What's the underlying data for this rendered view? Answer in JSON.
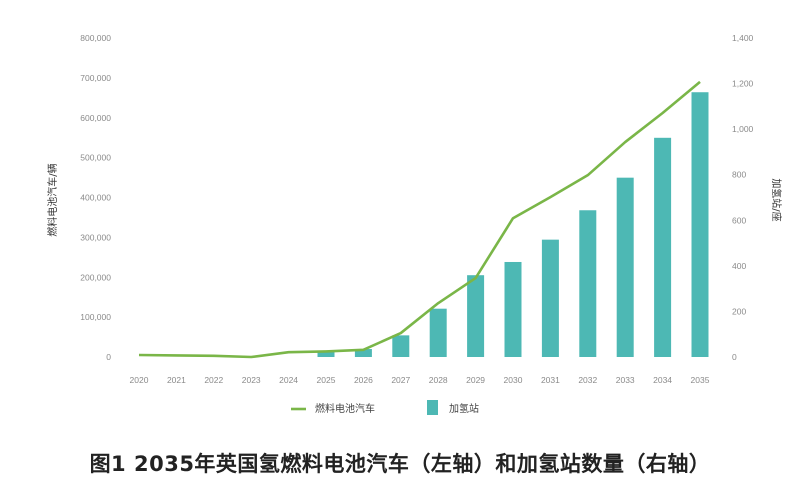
{
  "chart_data": {
    "type": "bar+line",
    "title": "图1 2035年英国氢燃料电池汽车（左轴）和加氢站数量（右轴）",
    "categories": [
      "2020",
      "2021",
      "2022",
      "2023",
      "2024",
      "2025",
      "2026",
      "2027",
      "2028",
      "2029",
      "2030",
      "2031",
      "2032",
      "2033",
      "2034",
      "2035"
    ],
    "series": [
      {
        "name": "燃料电池汽车",
        "type": "line",
        "axis": "left",
        "color": "#7AB648",
        "values": [
          5000,
          4000,
          3000,
          0,
          12000,
          14000,
          18000,
          60000,
          135000,
          198000,
          348000,
          401000,
          456000,
          539000,
          612000,
          690000
        ]
      },
      {
        "name": "加氢站",
        "type": "bar",
        "axis": "right",
        "color": "#4DB8B4",
        "values": [
          0,
          0,
          0,
          0,
          0,
          25,
          35,
          95,
          212,
          359,
          417,
          515,
          644,
          787,
          962,
          1162
        ]
      }
    ],
    "ylabel": "燃料电池汽车/辆",
    "y2label": "加氢站/座",
    "ylim": [
      0,
      800000
    ],
    "y2lim": [
      0,
      1400
    ],
    "yticks": [
      "0",
      "100,000",
      "200,000",
      "300,000",
      "400,000",
      "500,000",
      "600,000",
      "700,000",
      "800,000"
    ],
    "y2ticks": [
      "0",
      "200",
      "400",
      "600",
      "800",
      "1,000",
      "1,200",
      "1,400"
    ],
    "grid": false,
    "legend": "bottom-center"
  }
}
